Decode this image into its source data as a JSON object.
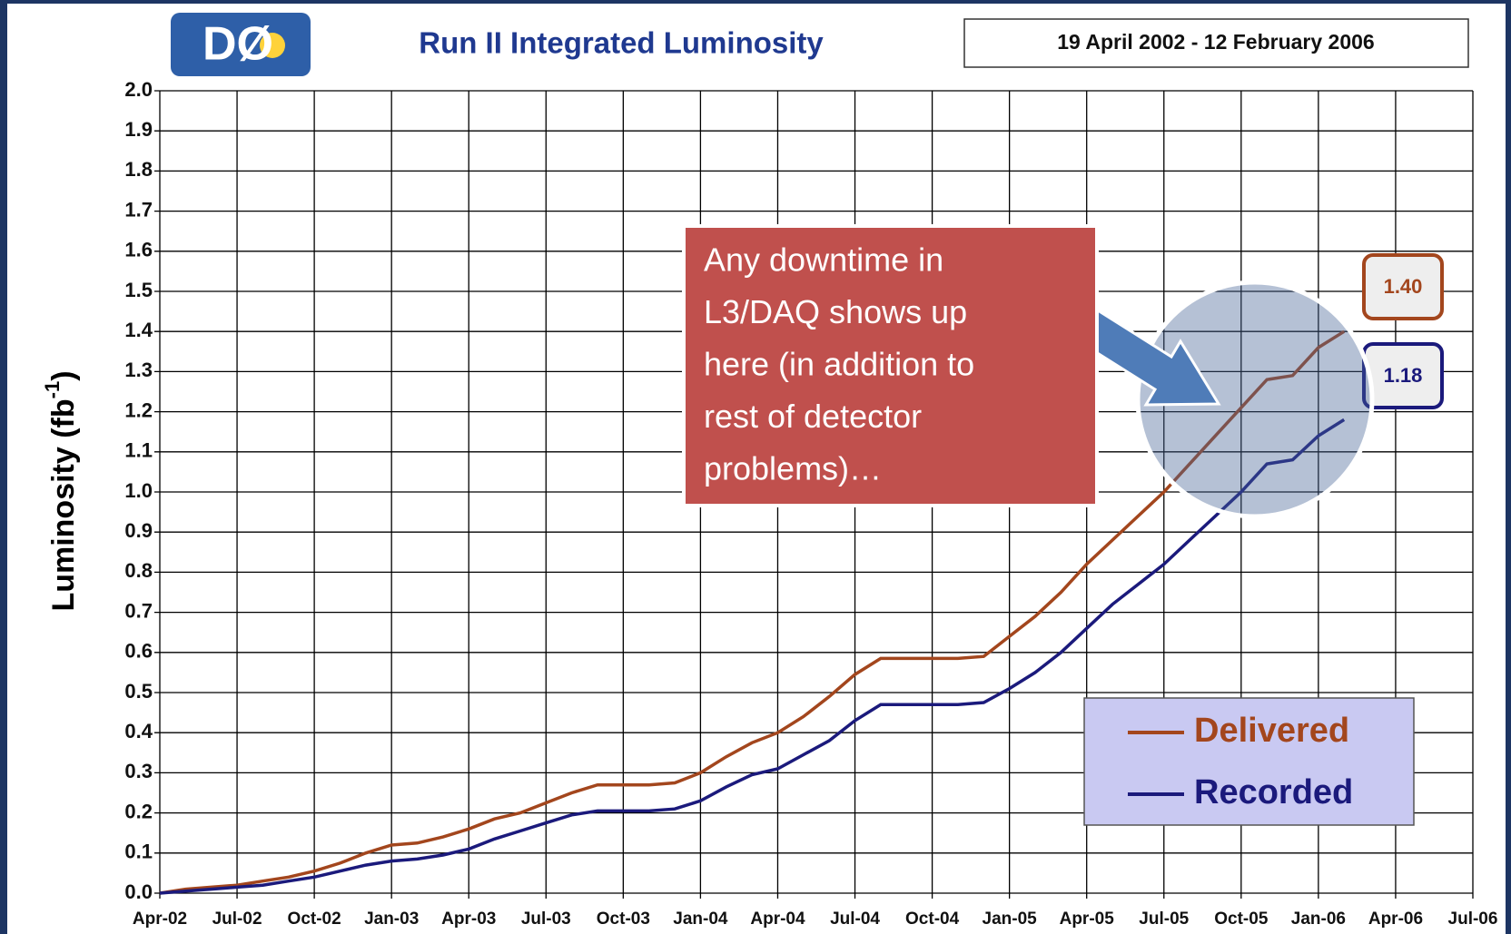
{
  "chart_data": {
    "type": "line",
    "logo": "DØ",
    "title": "Run II Integrated Luminosity",
    "subtitle": "19 April 2002 - 12 February 2006",
    "y_label": "Luminosity (fb",
    "y_label_sup": "-1",
    "y_label_end": ")",
    "x": [
      "Apr-02",
      null,
      null,
      "Jul-02",
      null,
      null,
      "Oct-02",
      null,
      null,
      "Jan-03",
      null,
      null,
      "Apr-03",
      null,
      null,
      "Jul-03",
      null,
      null,
      "Oct-03",
      null,
      null,
      "Jan-04",
      null,
      null,
      "Apr-04",
      null,
      null,
      "Jul-04",
      null,
      null,
      "Oct-04",
      null,
      null,
      "Jan-05",
      null,
      null,
      "Apr-05",
      null,
      null,
      "Jul-05",
      null,
      null,
      "Oct-05",
      null,
      null,
      "Jan-06",
      null,
      null,
      "Apr-06",
      null,
      null,
      "Jul-06"
    ],
    "series": [
      {
        "name": "Delivered",
        "color": "#a3461d",
        "end_label": "1.40",
        "values": [
          0,
          0.01,
          0.015,
          0.02,
          0.03,
          0.04,
          0.055,
          0.075,
          0.1,
          0.12,
          0.125,
          0.14,
          0.16,
          0.185,
          0.2,
          0.225,
          0.25,
          0.27,
          0.27,
          0.27,
          0.275,
          0.3,
          0.34,
          0.375,
          0.4,
          0.44,
          0.49,
          0.545,
          0.585,
          0.585,
          0.585,
          0.585,
          0.59,
          0.64,
          0.69,
          0.75,
          0.82,
          0.88,
          0.94,
          1.0,
          1.07,
          1.14,
          1.21,
          1.28,
          1.29,
          1.36,
          1.4,
          null,
          null,
          null,
          null,
          null
        ]
      },
      {
        "name": "Recorded",
        "color": "#1b1a7c",
        "end_label": "1.18",
        "values": [
          0,
          0.005,
          0.01,
          0.015,
          0.02,
          0.03,
          0.04,
          0.055,
          0.07,
          0.08,
          0.085,
          0.095,
          0.11,
          0.135,
          0.155,
          0.175,
          0.195,
          0.205,
          0.205,
          0.205,
          0.21,
          0.23,
          0.265,
          0.295,
          0.31,
          0.345,
          0.38,
          0.43,
          0.47,
          0.47,
          0.47,
          0.47,
          0.475,
          0.51,
          0.55,
          0.6,
          0.66,
          0.72,
          0.77,
          0.82,
          0.88,
          0.94,
          1.0,
          1.07,
          1.08,
          1.14,
          1.18,
          null,
          null,
          null,
          null,
          null
        ]
      }
    ],
    "ylim": [
      0,
      2
    ],
    "yticks": [
      {
        "value": 0,
        "label": "0.0"
      },
      0.1,
      0.2,
      0.3,
      0.4,
      0.5,
      0.6,
      0.7,
      0.8,
      0.9,
      {
        "value": 1,
        "label": "1.0"
      },
      1.1,
      1.2,
      1.3,
      1.4,
      1.5,
      1.6,
      1.7,
      1.8,
      1.9,
      {
        "value": 2,
        "label": "2.0"
      }
    ],
    "grid": true,
    "legend": "lower right",
    "annotation": {
      "lines": [
        "Any downtime in",
        "L3/DAQ shows up",
        "here (in addition to",
        "rest of detector",
        "problems)…"
      ]
    }
  }
}
